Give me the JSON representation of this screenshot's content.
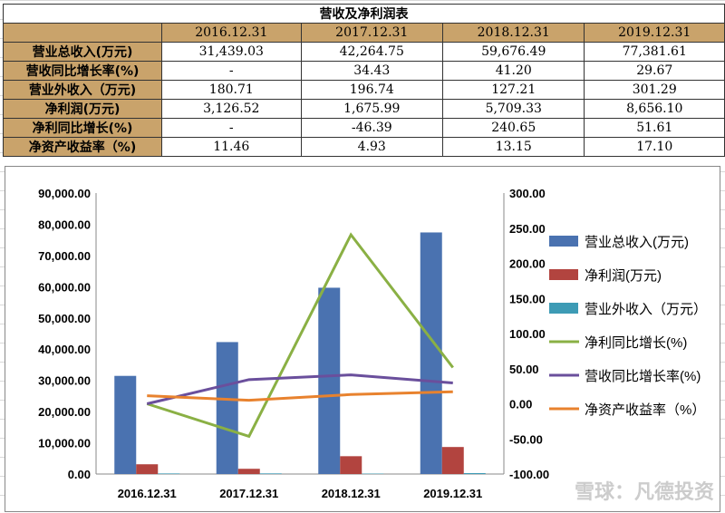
{
  "table": {
    "title": "营收及净利润表",
    "headers": [
      "",
      "2016.12.31",
      "2017.12.31",
      "2018.12.31",
      "2019.12.31"
    ],
    "rows": [
      [
        "营业总收入(万元)",
        "31,439.03",
        "42,264.75",
        "59,676.49",
        "77,381.61"
      ],
      [
        "营收同比增长率(%)",
        "-",
        "34.43",
        "41.20",
        "29.67"
      ],
      [
        "营业外收入（万元)",
        "180.71",
        "196.74",
        "127.21",
        "301.29"
      ],
      [
        "净利润(万元)",
        "3,126.52",
        "1,675.99",
        "5,709.33",
        "8,656.10"
      ],
      [
        "净利同比增长(%)",
        "-",
        "-46.39",
        "240.65",
        "51.61"
      ],
      [
        "净资产收益率（%)",
        "11.46",
        "4.93",
        "13.15",
        "17.10"
      ]
    ]
  },
  "chart_data": {
    "type": "bar+line",
    "categories": [
      "2016.12.31",
      "2017.12.31",
      "2018.12.31",
      "2019.12.31"
    ],
    "left_axis": {
      "ylim": [
        0,
        90000
      ],
      "ticks": [
        "0.00",
        "10,000.00",
        "20,000.00",
        "30,000.00",
        "40,000.00",
        "50,000.00",
        "60,000.00",
        "70,000.00",
        "80,000.00",
        "90,000.00"
      ]
    },
    "right_axis": {
      "ylim": [
        -100,
        300
      ],
      "ticks": [
        "-100.00",
        "-50.00",
        "0.00",
        "50.00",
        "100.00",
        "150.00",
        "200.00",
        "250.00",
        "300.00"
      ]
    },
    "legend_placement": "right",
    "series": [
      {
        "name": "营业总收入(万元)",
        "kind": "bar",
        "axis": "left",
        "color": "#4a72b0",
        "values": [
          31439.03,
          42264.75,
          59676.49,
          77381.61
        ]
      },
      {
        "name": "净利润(万元)",
        "kind": "bar",
        "axis": "left",
        "color": "#b2443f",
        "values": [
          3126.52,
          1675.99,
          5709.33,
          8656.1
        ]
      },
      {
        "name": "营业外收入（万元）",
        "kind": "bar",
        "axis": "left",
        "color": "#3d9bb5",
        "values": [
          180.71,
          196.74,
          127.21,
          301.29
        ]
      },
      {
        "name": "净利同比增长(%)",
        "kind": "line",
        "axis": "right",
        "color": "#8ab044",
        "values": [
          0,
          -46.39,
          240.65,
          51.61
        ]
      },
      {
        "name": "营收同比增长率(%)",
        "kind": "line",
        "axis": "right",
        "color": "#6a4f9c",
        "values": [
          0,
          34.43,
          41.2,
          29.67
        ]
      },
      {
        "name": "净资产收益率（%）",
        "kind": "line",
        "axis": "right",
        "color": "#e8822e",
        "values": [
          11.46,
          4.93,
          13.15,
          17.1
        ]
      }
    ]
  },
  "watermark": "雪球：凡德投资"
}
